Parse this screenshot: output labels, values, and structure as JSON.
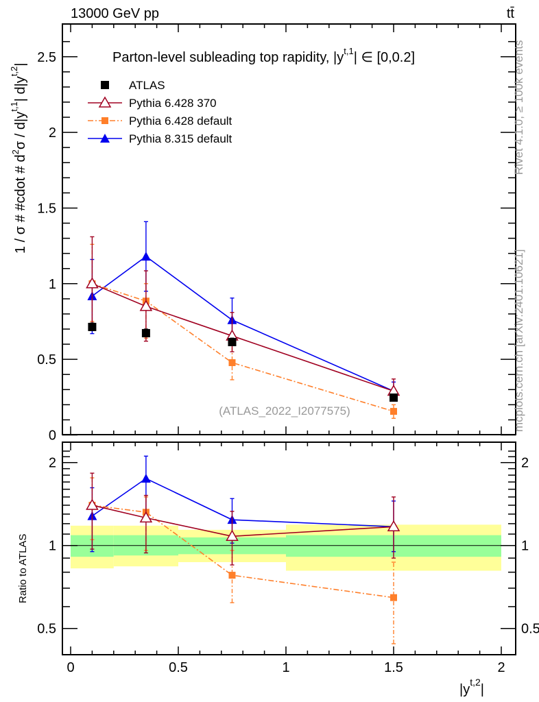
{
  "chart_data": {
    "type": "line",
    "header_left": "13000 GeV pp",
    "header_right": "tt̄",
    "title": "Parton-level subleading top rapidity, |y",
    "title_sup": "t,1",
    "title_tail": "| ∈ [0,0.2]",
    "ylabel": "1 / σ # #cdot # d²σ / d|y^{t,1}| d|y^{t,2}|",
    "ylabel_text": "1 / σ # #cdot # d",
    "ylabel_text2": "σ / d|y",
    "ylabel_text3": "| d|y",
    "ylabel_sup1": "2",
    "ylabel_sup2": "t,1",
    "ylabel_sup3": "t,2",
    "ylabel_end": "|",
    "ratio_ylabel": "Ratio to ATLAS",
    "xlabel": "|y",
    "xlabel_sup": "t,2",
    "xlabel_end": "|",
    "xlim": [
      0,
      2
    ],
    "ylim": [
      0,
      2.7
    ],
    "ratio_ylim": [
      0.4,
      2.3
    ],
    "x_ticks": [
      "0",
      "0.5",
      "1",
      "1.5",
      "2"
    ],
    "y_ticks": [
      "0",
      "0.5",
      "1",
      "1.5",
      "2",
      "2.5"
    ],
    "ratio_y_ticks": [
      "0.5",
      "1",
      "2"
    ],
    "side_label_top": "Rivet 4.1.0, ≥ 100k events",
    "side_label_bottom": "mcplots.cern.ch [arXiv:2401.10621]",
    "watermark": "(ATLAS_2022_I2077575)",
    "x": [
      0.1,
      0.35,
      0.75,
      1.5
    ],
    "bins": [
      [
        0,
        0.2
      ],
      [
        0.2,
        0.5
      ],
      [
        0.5,
        1.0
      ],
      [
        1.0,
        2.0
      ]
    ],
    "ratio_bands": {
      "yellow": [
        [
          0.826,
          1.18
        ],
        [
          0.84,
          1.18
        ],
        [
          0.87,
          1.14
        ],
        [
          0.81,
          1.19
        ]
      ],
      "green": [
        [
          0.91,
          1.09
        ],
        [
          0.92,
          1.09
        ],
        [
          0.93,
          1.07
        ],
        [
          0.91,
          1.09
        ]
      ],
      "yellow_color": "#ffff99",
      "green_color": "#99ff99"
    },
    "series": [
      {
        "name": "ATLAS",
        "color": "#000000",
        "marker": "square",
        "line": "none",
        "values": [
          0.714,
          0.673,
          0.614,
          0.247
        ],
        "errors": [
          [
            0.69,
            0.74
          ],
          [
            0.65,
            0.7
          ],
          [
            0.59,
            0.64
          ],
          [
            0.23,
            0.265
          ]
        ],
        "ratio": [
          1,
          1,
          1,
          1
        ],
        "ratio_errors": [
          [
            1,
            1
          ],
          [
            1,
            1
          ],
          [
            1,
            1
          ],
          [
            1,
            1
          ]
        ]
      },
      {
        "name": "Pythia 6.428 370",
        "color": "#a00020",
        "marker": "open-triangle",
        "line": "solid",
        "values": [
          1.0,
          0.85,
          0.655,
          0.29
        ],
        "errors": [
          [
            0.7,
            1.31
          ],
          [
            0.62,
            1.085
          ],
          [
            0.55,
            0.81
          ],
          [
            0.23,
            0.37
          ]
        ],
        "ratio": [
          1.4,
          1.26,
          1.08,
          1.17
        ],
        "ratio_errors": [
          [
            0.97,
            1.83
          ],
          [
            0.94,
            1.52
          ],
          [
            0.85,
            1.33
          ],
          [
            0.9,
            1.5
          ]
        ]
      },
      {
        "name": "Pythia 6.428 default",
        "color": "#ff7f2a",
        "marker": "square",
        "line": "dashdot",
        "values": [
          1.0,
          0.885,
          0.478,
          0.156
        ],
        "errors": [
          [
            0.75,
            1.26
          ],
          [
            0.64,
            1.0
          ],
          [
            0.365,
            0.6
          ],
          [
            0.11,
            0.2
          ]
        ],
        "ratio": [
          1.4,
          1.32,
          0.78,
          0.647
        ],
        "ratio_errors": [
          [
            1.05,
            1.76
          ],
          [
            0.96,
            1.5
          ],
          [
            0.62,
            0.96
          ],
          [
            0.44,
            0.87
          ]
        ]
      },
      {
        "name": "Pythia 8.315 default",
        "color": "#0000ee",
        "marker": "triangle",
        "line": "solid",
        "values": [
          0.918,
          1.18,
          0.76,
          0.29
        ],
        "errors": [
          [
            0.67,
            1.16
          ],
          [
            0.95,
            1.41
          ],
          [
            0.62,
            0.905
          ],
          [
            0.24,
            0.35
          ]
        ],
        "ratio": [
          1.28,
          1.75,
          1.24,
          1.17
        ],
        "ratio_errors": [
          [
            0.95,
            1.62
          ],
          [
            1.34,
            2.11
          ],
          [
            1.02,
            1.48
          ],
          [
            0.95,
            1.45
          ]
        ]
      }
    ]
  }
}
